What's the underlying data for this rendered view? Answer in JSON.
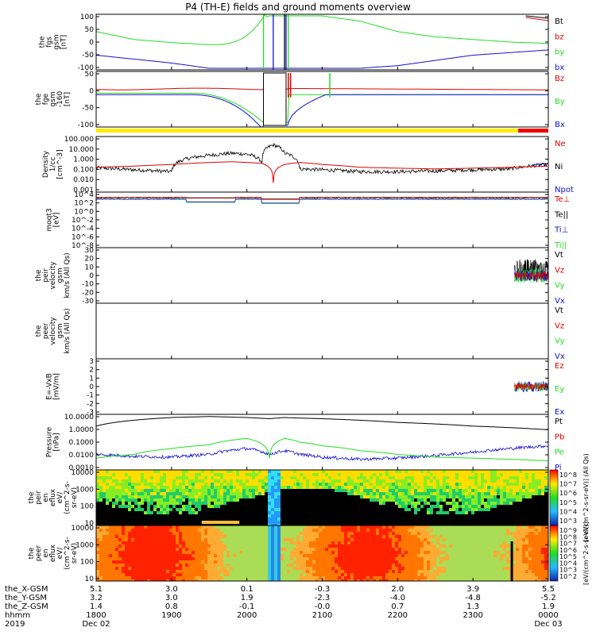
{
  "title": "P4 (TH-E) fields and ground moments overview",
  "colors": {
    "black": "#000000",
    "red": "#e00000",
    "green": "#22dd22",
    "blue": "#1010d0",
    "yellow": "#ffee00",
    "bar_red": "#ee0000"
  },
  "panels": [
    {
      "id": "fgs",
      "ylabel": [
        "the",
        "fgs",
        "gsm",
        "[nT]"
      ],
      "ticks": [
        "100",
        "50",
        "0",
        "-50",
        "-100"
      ],
      "legend": [
        {
          "text": "Bt",
          "color": "#000000"
        },
        {
          "text": "bz",
          "color": "#e00000"
        },
        {
          "text": "by",
          "color": "#22dd22"
        },
        {
          "text": "bx",
          "color": "#1010d0"
        }
      ]
    },
    {
      "id": "fge",
      "ylabel": [
        "the",
        "fge",
        "gsm",
        "-160",
        "[nT]"
      ],
      "ticks": [
        "50",
        "0",
        "-50",
        "-100"
      ],
      "legend": [
        {
          "text": "Bz",
          "color": "#e00000"
        },
        {
          "text": "By",
          "color": "#22dd22"
        },
        {
          "text": "Bx",
          "color": "#1010d0"
        }
      ]
    },
    {
      "id": "density",
      "ylabel": [
        "Density",
        "1/cc",
        "[cm^-3]"
      ],
      "ticks": [
        "100.000",
        "10.000",
        "1.000",
        "0.100",
        "0.010",
        "0.001"
      ],
      "legend": [
        {
          "text": "Ne",
          "color": "#e00000"
        },
        {
          "text": "Ni",
          "color": "#000000"
        },
        {
          "text": "Npot",
          "color": "#1010d0"
        }
      ]
    },
    {
      "id": "temp",
      "ylabel": [
        "moqt3",
        "[eV]"
      ],
      "ticks": [
        "10^4",
        "10^2",
        "10^0",
        "10^-2",
        "10^-4",
        "10^-6",
        "10^-8"
      ],
      "legend": [
        {
          "text": "Te⊥",
          "color": "#e00000"
        },
        {
          "text": "Te||",
          "color": "#000000"
        },
        {
          "text": "Ti⊥",
          "color": "#1010d0"
        },
        {
          "text": "Ti||",
          "color": "#22dd22"
        }
      ]
    },
    {
      "id": "peir_vel",
      "ylabel": [
        "the",
        "peir",
        "velocity",
        "gsm",
        "km/s (All Qs)"
      ],
      "ticks": [
        "30",
        "20",
        "10",
        "0",
        "-10",
        "-20",
        "-30"
      ],
      "legend": [
        {
          "text": "Vt",
          "color": "#000000"
        },
        {
          "text": "Vz",
          "color": "#e00000"
        },
        {
          "text": "Vy",
          "color": "#22dd22"
        },
        {
          "text": "Vx",
          "color": "#1010d0"
        }
      ]
    },
    {
      "id": "peer_vel",
      "ylabel": [
        "the",
        "peer",
        "velocity",
        "gsm",
        "km/s (All Qs)"
      ],
      "ticks": [],
      "legend": [
        {
          "text": "Vt",
          "color": "#000000"
        },
        {
          "text": "Vz",
          "color": "#e00000"
        },
        {
          "text": "Vy",
          "color": "#22dd22"
        },
        {
          "text": "Vx",
          "color": "#1010d0"
        }
      ]
    },
    {
      "id": "efield",
      "ylabel": [
        "E=-VxB",
        "[mV/m]"
      ],
      "ticks": [
        "3",
        "2",
        "1",
        "0",
        "-1",
        "-2",
        "-3"
      ],
      "legend": [
        {
          "text": "Ez",
          "color": "#e00000"
        },
        {
          "text": "Ey",
          "color": "#22dd22"
        },
        {
          "text": "Ex",
          "color": "#1010d0"
        }
      ]
    },
    {
      "id": "pressure",
      "ylabel": [
        "Pressure",
        "[nPa]"
      ],
      "ticks": [
        "10.0000",
        "1.0000",
        "0.1000",
        "0.0100",
        "0.0010"
      ],
      "legend": [
        {
          "text": "Pt",
          "color": "#000000"
        },
        {
          "text": "Pb",
          "color": "#e00000"
        },
        {
          "text": "Pe",
          "color": "#22dd22"
        },
        {
          "text": "Pi",
          "color": "#1010d0"
        }
      ]
    },
    {
      "id": "peir_eflux",
      "ylabel": [
        "the",
        "peir",
        "en",
        "eflux",
        "eV/",
        "(cm^2-s-",
        "sr-eV)"
      ],
      "ticks": [
        "10000",
        "1000",
        "100",
        "10"
      ],
      "colorbar_ticks": [
        "10^8",
        "10^7",
        "10^6",
        "10^5",
        "10^4",
        "10^3"
      ],
      "colorbar_label": "[eV/(cm^2-s-sr-eV)] (All Qs)"
    },
    {
      "id": "peer_eflux",
      "ylabel": [
        "the",
        "peer",
        "en",
        "eflux",
        "eV/",
        "(cm^2-s-",
        "sr-eV)"
      ],
      "ticks": [
        "10000",
        "1000",
        "100",
        "10"
      ],
      "colorbar_ticks": [
        "10^9",
        "10^8",
        "10^7",
        "10^6",
        "10^5",
        "10^4",
        "10^3",
        "10^2"
      ],
      "colorbar_label": "[eV/(cm^2-s-sr-eV)]"
    }
  ],
  "footer": {
    "rows": [
      {
        "label": "the_X-GSM",
        "values": [
          "5.1",
          "3.0",
          "0.1",
          "-0.3",
          "2.0",
          "3.9",
          "5.5"
        ]
      },
      {
        "label": "the_Y-GSM",
        "values": [
          "3.2",
          "3.0",
          "1.9",
          "-2.3",
          "-4.0",
          "-4.8",
          "-5.2"
        ]
      },
      {
        "label": "the_Z-GSM",
        "values": [
          "1.4",
          "0.8",
          "-0.1",
          "-0.0",
          "0.7",
          "1.3",
          "1.9"
        ]
      },
      {
        "label": "hhmm",
        "values": [
          "1800",
          "1900",
          "2000",
          "2100",
          "2200",
          "2300",
          "0000"
        ]
      },
      {
        "label": "2019",
        "values": [
          "Dec 02",
          "",
          "",
          "",
          "",
          "",
          "Dec 03"
        ]
      }
    ]
  },
  "chart_data": {
    "type": "line",
    "title": "P4 (TH-E) fields and ground moments overview",
    "time_axis": [
      "1800",
      "1900",
      "2000",
      "2100",
      "2200",
      "2300",
      "0000"
    ],
    "series_fgs": {
      "x_hours": [
        18.0,
        18.5,
        19.0,
        19.5,
        19.8,
        20.0,
        20.3,
        20.5,
        20.7,
        21.0,
        21.5,
        22.0,
        22.5,
        23.0,
        23.5,
        24.0
      ],
      "by_nT": [
        40,
        10,
        -2,
        -10,
        -20,
        80,
        100,
        100,
        100,
        100,
        80,
        40,
        20,
        10,
        0,
        -5
      ],
      "bx_nT": [
        -50,
        -65,
        -80,
        -100,
        -100,
        -100,
        -100,
        -100,
        -100,
        -100,
        -100,
        -90,
        -70,
        -50,
        -40,
        -30
      ]
    },
    "series_density": {
      "x_hours": [
        18.0,
        18.5,
        19.0,
        19.5,
        19.8,
        20.0,
        20.2,
        20.35,
        20.5,
        20.7,
        21.0,
        21.5,
        22.0,
        22.5,
        23.0,
        23.5,
        24.0
      ],
      "Ni": [
        0.13,
        0.08,
        0.05,
        3,
        5,
        4,
        0.5,
        40,
        5,
        0.1,
        0.08,
        0.05,
        0.05,
        0.06,
        0.08,
        0.1,
        0.3
      ],
      "Ne": [
        0.15,
        0.2,
        0.3,
        0.5,
        0.6,
        0.5,
        0.4,
        0.003,
        0.3,
        0.5,
        0.3,
        0.15,
        0.12,
        0.1,
        0.12,
        0.15,
        0.2
      ]
    },
    "series_pressure": {
      "x_hours": [
        18.0,
        18.5,
        19.0,
        19.5,
        20.0,
        20.3,
        20.5,
        20.7,
        21.0,
        21.5,
        22.0,
        22.5,
        23.0,
        23.5,
        24.0
      ],
      "Pt": [
        2.0,
        6.0,
        10.0,
        12.0,
        10.0,
        8.0,
        10.0,
        9.0,
        8.0,
        6.0,
        4.0,
        3.0,
        2.0,
        1.5,
        1.0
      ],
      "Pe": [
        0.005,
        0.01,
        0.03,
        0.06,
        0.2,
        0.005,
        0.2,
        0.1,
        0.05,
        0.02,
        0.01,
        0.006,
        0.005,
        0.004,
        0.003
      ],
      "Pi": [
        0.01,
        0.007,
        0.006,
        0.01,
        0.03,
        0.01,
        0.02,
        0.01,
        0.006,
        0.004,
        0.005,
        0.008,
        0.015,
        0.03,
        0.05
      ]
    }
  }
}
